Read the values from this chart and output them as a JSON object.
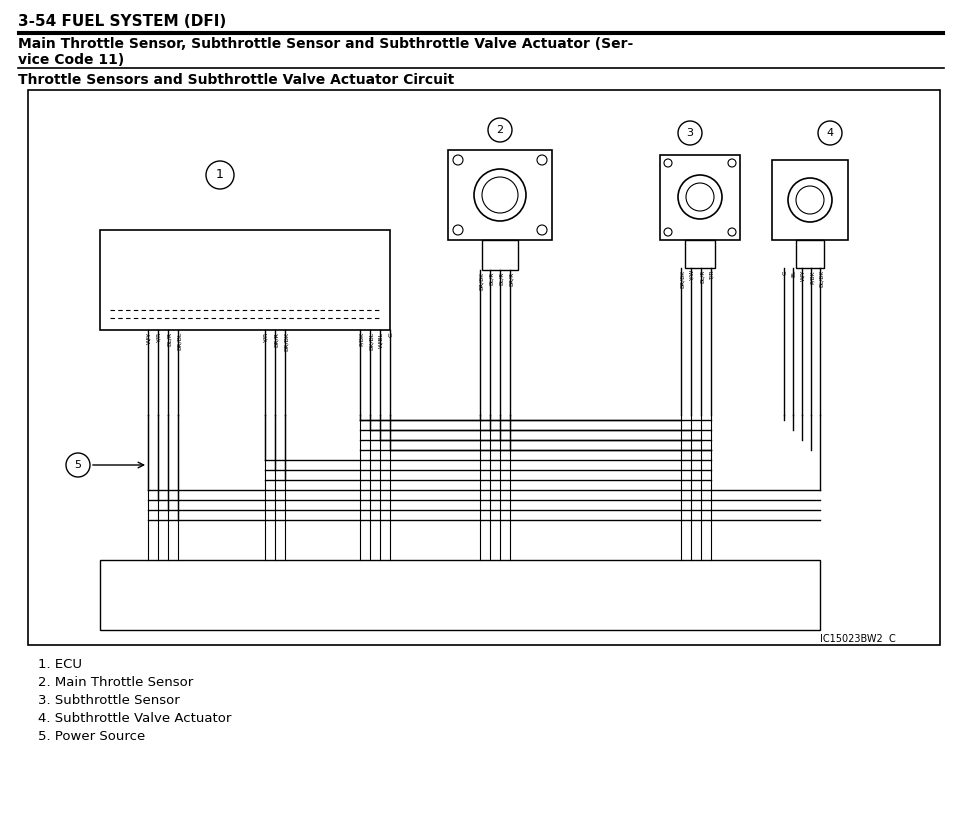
{
  "title1": "3-54 FUEL SYSTEM (DFI)",
  "title2": "Main Throttle Sensor, Subthrottle Sensor and Subthrottle Valve Actuator (Ser-\nvice Code 11)",
  "title3": "Throttle Sensors and Subthrottle Valve Actuator Circuit",
  "legend": [
    "1. ECU",
    "2. Main Throttle Sensor",
    "3. Subthrottle Sensor",
    "4. Subthrottle Valve Actuator",
    "5. Power Source"
  ],
  "diagram_id": "IC15023BW2  C",
  "bg_color": "#ffffff",
  "line_color": "#000000",
  "ecu_label_wires_left": [
    "W/Y",
    "Y/R",
    "BL/R",
    "BR/BL"
  ],
  "ecu_label_wires_mid": [
    "Y/R",
    "BR/R",
    "BR/BK"
  ],
  "ecu_label_wires_right": [
    "P/BK",
    "BK/BL",
    "W/BL",
    "G"
  ],
  "sensor2_wires": [
    "BR/BK",
    "BL/R",
    "BL/R",
    "BR/R"
  ],
  "sensor3_wires": [
    "BR/BK",
    "Y/W",
    "BL/R",
    "T/R"
  ],
  "sensor4_wires": [
    "G",
    "BL",
    "W/Y",
    "P/BK",
    "BL/BK"
  ]
}
